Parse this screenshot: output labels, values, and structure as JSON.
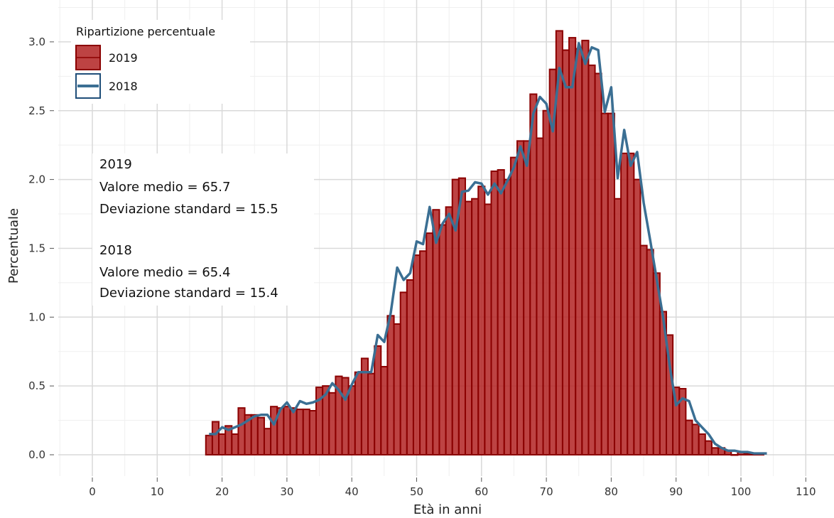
{
  "chart_data": {
    "type": "bar",
    "xlabel": "Età in anni",
    "ylabel": "Percentuale",
    "xlim": [
      -5,
      114
    ],
    "ylim": [
      -0.15,
      3.25
    ],
    "xticks": [
      0,
      10,
      20,
      30,
      40,
      50,
      60,
      70,
      80,
      90,
      100,
      110
    ],
    "yticks": [
      0.0,
      0.5,
      1.0,
      1.5,
      2.0,
      2.5,
      3.0
    ],
    "xtick_labels": [
      "0",
      "10",
      "20",
      "30",
      "40",
      "50",
      "60",
      "70",
      "80",
      "90",
      "100",
      "110"
    ],
    "ytick_labels": [
      "0.0",
      "0.5",
      "1.0",
      "1.5",
      "2.0",
      "2.5",
      "3.0"
    ],
    "grid": true,
    "legend": {
      "title": "Ripartizione percentuale",
      "position": "top-left",
      "entries": [
        "2019",
        "2018"
      ]
    },
    "colors": {
      "bar_fill": "#b22222",
      "bar_stroke": "#8b0000",
      "line": "#3b6f93",
      "legend_line_box": "#1f4e79",
      "grid_major": "#d9d9d9",
      "grid_minor": "#efefef"
    },
    "series": [
      {
        "name": "2019",
        "type": "bar",
        "x": [
          18,
          19,
          20,
          21,
          22,
          23,
          24,
          25,
          26,
          27,
          28,
          29,
          30,
          31,
          32,
          33,
          34,
          35,
          36,
          37,
          38,
          39,
          40,
          41,
          42,
          43,
          44,
          45,
          46,
          47,
          48,
          49,
          50,
          51,
          52,
          53,
          54,
          55,
          56,
          57,
          58,
          59,
          60,
          61,
          62,
          63,
          64,
          65,
          66,
          67,
          68,
          69,
          70,
          71,
          72,
          73,
          74,
          75,
          76,
          77,
          78,
          79,
          80,
          81,
          82,
          83,
          84,
          85,
          86,
          87,
          88,
          89,
          90,
          91,
          92,
          93,
          94,
          95,
          96,
          97,
          98,
          99,
          100,
          101,
          102,
          103
        ],
        "values": [
          0.14,
          0.24,
          0.15,
          0.21,
          0.15,
          0.34,
          0.29,
          0.29,
          0.27,
          0.19,
          0.35,
          0.34,
          0.35,
          0.34,
          0.33,
          0.33,
          0.32,
          0.49,
          0.5,
          0.45,
          0.57,
          0.56,
          0.5,
          0.6,
          0.7,
          0.59,
          0.79,
          0.64,
          1.01,
          0.95,
          1.18,
          1.27,
          1.45,
          1.48,
          1.61,
          1.78,
          1.67,
          1.8,
          2.0,
          2.01,
          1.84,
          1.86,
          1.95,
          1.82,
          2.06,
          2.07,
          2.0,
          2.16,
          2.28,
          2.28,
          2.62,
          2.3,
          2.5,
          2.8,
          3.08,
          2.94,
          3.03,
          2.95,
          3.01,
          2.83,
          2.77,
          2.48,
          2.48,
          1.86,
          2.19,
          2.19,
          2.0,
          1.52,
          1.49,
          1.32,
          1.04,
          0.87,
          0.49,
          0.48,
          0.25,
          0.22,
          0.15,
          0.1,
          0.05,
          0.05,
          0.03,
          0.0,
          0.02,
          0.01,
          0.01,
          0.01
        ]
      },
      {
        "name": "2018",
        "type": "line",
        "x": [
          18,
          19,
          20,
          21,
          22,
          23,
          24,
          25,
          26,
          27,
          28,
          29,
          30,
          31,
          32,
          33,
          34,
          35,
          36,
          37,
          38,
          39,
          40,
          41,
          42,
          43,
          44,
          45,
          46,
          47,
          48,
          49,
          50,
          51,
          52,
          53,
          54,
          55,
          56,
          57,
          58,
          59,
          60,
          61,
          62,
          63,
          64,
          65,
          66,
          67,
          68,
          69,
          70,
          71,
          72,
          73,
          74,
          75,
          76,
          77,
          78,
          79,
          80,
          81,
          82,
          83,
          84,
          85,
          86,
          87,
          88,
          89,
          90,
          91,
          92,
          93,
          94,
          95,
          96,
          97,
          98,
          99,
          100,
          101,
          102,
          103,
          104
        ],
        "values": [
          0.15,
          0.15,
          0.2,
          0.18,
          0.2,
          0.22,
          0.25,
          0.28,
          0.29,
          0.29,
          0.22,
          0.33,
          0.38,
          0.31,
          0.39,
          0.37,
          0.38,
          0.4,
          0.44,
          0.52,
          0.47,
          0.4,
          0.51,
          0.6,
          0.6,
          0.6,
          0.87,
          0.82,
          1.03,
          1.36,
          1.27,
          1.32,
          1.55,
          1.53,
          1.8,
          1.54,
          1.68,
          1.75,
          1.63,
          1.91,
          1.92,
          1.98,
          1.97,
          1.89,
          1.97,
          1.9,
          1.99,
          2.09,
          2.24,
          2.1,
          2.48,
          2.6,
          2.55,
          2.35,
          2.81,
          2.67,
          2.67,
          2.99,
          2.84,
          2.96,
          2.94,
          2.49,
          2.67,
          2.01,
          2.36,
          2.1,
          2.2,
          1.83,
          1.56,
          1.28,
          1.0,
          0.65,
          0.36,
          0.41,
          0.39,
          0.25,
          0.2,
          0.15,
          0.08,
          0.05,
          0.03,
          0.03,
          0.02,
          0.02,
          0.01,
          0.01,
          0.01
        ]
      }
    ]
  },
  "stats": {
    "y2019": {
      "heading": "2019",
      "mean": "Valore medio = 65.7",
      "sd": "Deviazione standard = 15.5"
    },
    "y2018": {
      "heading": "2018",
      "mean": "Valore medio = 65.4",
      "sd": "Deviazione standard = 15.4"
    }
  }
}
